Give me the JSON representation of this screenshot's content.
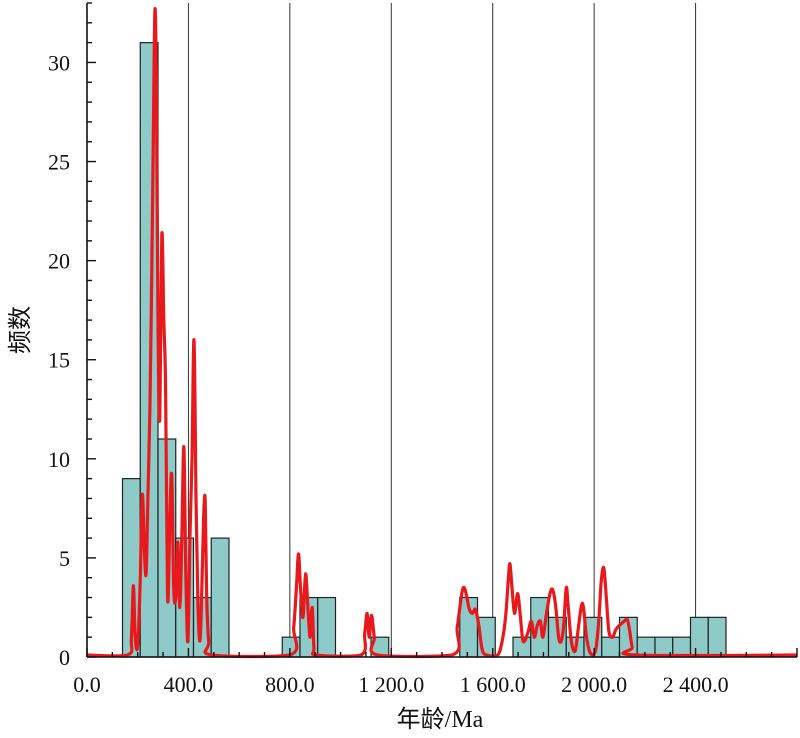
{
  "chart_data": {
    "type": "bar",
    "title": "",
    "xlabel": "年龄/Ma",
    "ylabel": "频数",
    "xlim": [
      0,
      2800
    ],
    "ylim": [
      0,
      33
    ],
    "x_ticks": [
      {
        "value": 0,
        "label": "0.0"
      },
      {
        "value": 400,
        "label": "400.0"
      },
      {
        "value": 800,
        "label": "800.0"
      },
      {
        "value": 1200,
        "label": "1 200.0"
      },
      {
        "value": 1600,
        "label": "1 600.0"
      },
      {
        "value": 2000,
        "label": "2 000.0"
      },
      {
        "value": 2400,
        "label": "2 400.0"
      }
    ],
    "y_ticks": [
      {
        "value": 0,
        "label": "0"
      },
      {
        "value": 5,
        "label": "5"
      },
      {
        "value": 10,
        "label": "10"
      },
      {
        "value": 15,
        "label": "15"
      },
      {
        "value": 20,
        "label": "20"
      },
      {
        "value": 25,
        "label": "25"
      },
      {
        "value": 30,
        "label": "30"
      }
    ],
    "vertical_gridlines_at": [
      400,
      800,
      1200,
      1600,
      2000,
      2400
    ],
    "histogram": {
      "bin_width": 70,
      "bins": [
        {
          "start": 140,
          "count": 9
        },
        {
          "start": 210,
          "count": 31
        },
        {
          "start": 280,
          "count": 11
        },
        {
          "start": 350,
          "count": 6
        },
        {
          "start": 420,
          "count": 3
        },
        {
          "start": 490,
          "count": 6
        },
        {
          "start": 770,
          "count": 1
        },
        {
          "start": 840,
          "count": 3
        },
        {
          "start": 910,
          "count": 3
        },
        {
          "start": 1120,
          "count": 1
        },
        {
          "start": 1470,
          "count": 3
        },
        {
          "start": 1540,
          "count": 2
        },
        {
          "start": 1680,
          "count": 1
        },
        {
          "start": 1750,
          "count": 3
        },
        {
          "start": 1820,
          "count": 2
        },
        {
          "start": 1890,
          "count": 1
        },
        {
          "start": 1960,
          "count": 2
        },
        {
          "start": 2030,
          "count": 1
        },
        {
          "start": 2100,
          "count": 2
        },
        {
          "start": 2170,
          "count": 1
        },
        {
          "start": 2240,
          "count": 1
        },
        {
          "start": 2310,
          "count": 1
        },
        {
          "start": 2380,
          "count": 2
        },
        {
          "start": 2450,
          "count": 2
        }
      ]
    },
    "density_curve": {
      "points": [
        [
          0,
          0.1
        ],
        [
          160,
          0.1
        ],
        [
          175,
          1.0
        ],
        [
          183,
          3.6
        ],
        [
          190,
          1.0
        ],
        [
          200,
          0.6
        ],
        [
          210,
          4.0
        ],
        [
          218,
          8.2
        ],
        [
          226,
          5.5
        ],
        [
          233,
          4.2
        ],
        [
          240,
          8.0
        ],
        [
          248,
          12.5
        ],
        [
          256,
          20.0
        ],
        [
          262,
          26.5
        ],
        [
          268,
          32.7
        ],
        [
          274,
          28.0
        ],
        [
          280,
          17.0
        ],
        [
          287,
          12.0
        ],
        [
          295,
          21.3
        ],
        [
          303,
          17.0
        ],
        [
          310,
          13.5
        ],
        [
          318,
          3.0
        ],
        [
          326,
          6.5
        ],
        [
          334,
          9.2
        ],
        [
          342,
          3.5
        ],
        [
          350,
          3.0
        ],
        [
          358,
          5.8
        ],
        [
          366,
          2.5
        ],
        [
          374,
          6.0
        ],
        [
          382,
          10.6
        ],
        [
          390,
          4.0
        ],
        [
          398,
          0.8
        ],
        [
          406,
          6.0
        ],
        [
          414,
          10.0
        ],
        [
          422,
          16.0
        ],
        [
          430,
          8.0
        ],
        [
          437,
          3.0
        ],
        [
          445,
          0.8
        ],
        [
          452,
          3.0
        ],
        [
          460,
          7.0
        ],
        [
          466,
          7.9
        ],
        [
          472,
          3.0
        ],
        [
          480,
          0.8
        ],
        [
          492,
          0.1
        ],
        [
          800,
          0.1
        ],
        [
          815,
          1.5
        ],
        [
          826,
          3.5
        ],
        [
          834,
          5.2
        ],
        [
          842,
          3.5
        ],
        [
          852,
          2.0
        ],
        [
          862,
          4.2
        ],
        [
          872,
          2.3
        ],
        [
          880,
          1.0
        ],
        [
          888,
          2.5
        ],
        [
          895,
          0.5
        ],
        [
          905,
          0.1
        ],
        [
          1080,
          0.1
        ],
        [
          1095,
          1.2
        ],
        [
          1105,
          2.2
        ],
        [
          1113,
          1.0
        ],
        [
          1122,
          2.1
        ],
        [
          1133,
          1.0
        ],
        [
          1145,
          0.1
        ],
        [
          1440,
          0.1
        ],
        [
          1460,
          1.5
        ],
        [
          1478,
          3.2
        ],
        [
          1488,
          3.5
        ],
        [
          1498,
          3.0
        ],
        [
          1508,
          2.4
        ],
        [
          1520,
          2.2
        ],
        [
          1532,
          2.4
        ],
        [
          1545,
          1.6
        ],
        [
          1558,
          0.4
        ],
        [
          1575,
          0.1
        ],
        [
          1620,
          0.1
        ],
        [
          1640,
          1.0
        ],
        [
          1652,
          2.2
        ],
        [
          1662,
          4.0
        ],
        [
          1668,
          4.7
        ],
        [
          1676,
          3.5
        ],
        [
          1686,
          2.2
        ],
        [
          1698,
          3.2
        ],
        [
          1708,
          2.2
        ],
        [
          1720,
          0.8
        ],
        [
          1738,
          1.2
        ],
        [
          1752,
          1.8
        ],
        [
          1764,
          1.0
        ],
        [
          1776,
          1.6
        ],
        [
          1788,
          1.8
        ],
        [
          1798,
          1.0
        ],
        [
          1812,
          2.2
        ],
        [
          1826,
          3.2
        ],
        [
          1836,
          3.4
        ],
        [
          1848,
          2.6
        ],
        [
          1860,
          1.0
        ],
        [
          1870,
          0.8
        ],
        [
          1880,
          1.6
        ],
        [
          1890,
          3.5
        ],
        [
          1898,
          2.5
        ],
        [
          1910,
          0.8
        ],
        [
          1925,
          0.3
        ],
        [
          1938,
          1.5
        ],
        [
          1950,
          2.6
        ],
        [
          1958,
          2.5
        ],
        [
          1970,
          1.0
        ],
        [
          1985,
          0.2
        ],
        [
          2005,
          0.3
        ],
        [
          2018,
          1.8
        ],
        [
          2028,
          3.8
        ],
        [
          2038,
          4.5
        ],
        [
          2048,
          3.0
        ],
        [
          2058,
          1.3
        ],
        [
          2072,
          1.0
        ],
        [
          2086,
          1.4
        ],
        [
          2100,
          1.6
        ],
        [
          2118,
          1.8
        ],
        [
          2130,
          1.9
        ],
        [
          2138,
          1.5
        ],
        [
          2150,
          0.5
        ],
        [
          2165,
          0.1
        ],
        [
          2800,
          0.1
        ]
      ],
      "color": "#ff0000"
    },
    "grid": {
      "vertical": true,
      "horizontal": false
    },
    "bar_fill": "#8ecac8",
    "bar_stroke": "#222222",
    "line_color": "#e8191c"
  }
}
